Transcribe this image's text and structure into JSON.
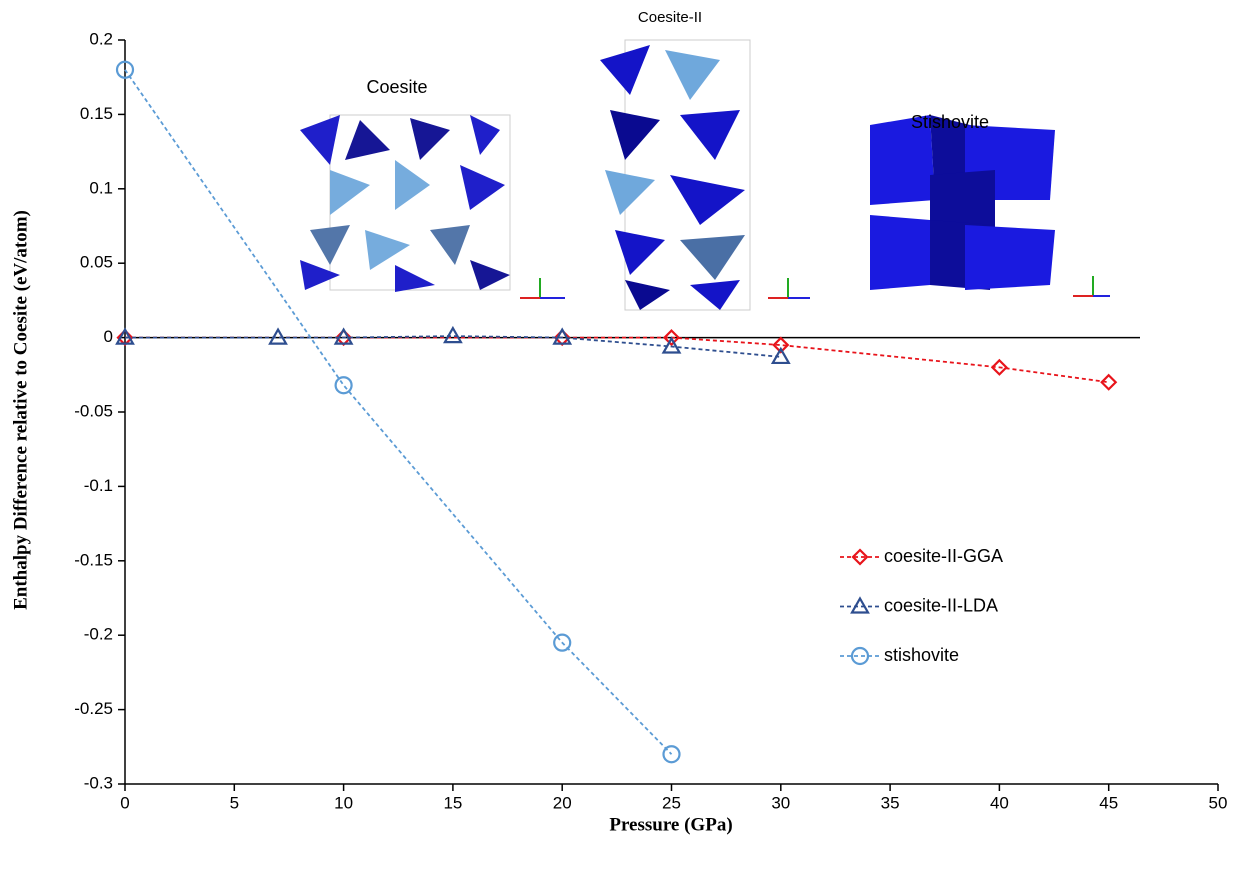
{
  "chart_data": {
    "type": "line",
    "x_label": "Pressure (GPa)",
    "y_label": "Enthalpy Difference relative to Coesite (eV/atom)",
    "annotations": [
      "Coesite",
      "Coesite-II",
      "Stishovite"
    ],
    "xlim": [
      0,
      50
    ],
    "xticks": [
      0,
      5,
      10,
      15,
      20,
      25,
      30,
      35,
      40,
      45,
      50
    ],
    "ylim": [
      -0.3,
      0.2
    ],
    "yticks": [
      0.2,
      0.15,
      0.1,
      0.05,
      0,
      -0.05,
      -0.1,
      -0.15,
      -0.2,
      -0.25,
      -0.3
    ],
    "legend": "lower right",
    "series": [
      {
        "name": "coesite-II-GGA",
        "color": "#e8141b",
        "marker": "diamond",
        "x": [
          0,
          10,
          20,
          25,
          30,
          40,
          45
        ],
        "values": [
          0,
          0,
          0,
          0,
          -0.005,
          -0.02,
          -0.03
        ]
      },
      {
        "name": "coesite-II-LDA",
        "color": "#2e4e8f",
        "marker": "triangle",
        "x": [
          0,
          7,
          10,
          15,
          20,
          25,
          30
        ],
        "values": [
          0,
          0,
          0,
          0.001,
          0,
          -0.006,
          -0.013
        ]
      },
      {
        "name": "stishovite",
        "color": "#5b9bd5",
        "marker": "circle",
        "x": [
          0,
          10,
          20,
          25
        ],
        "values": [
          0.18,
          -0.032,
          -0.205,
          -0.28
        ]
      }
    ]
  }
}
